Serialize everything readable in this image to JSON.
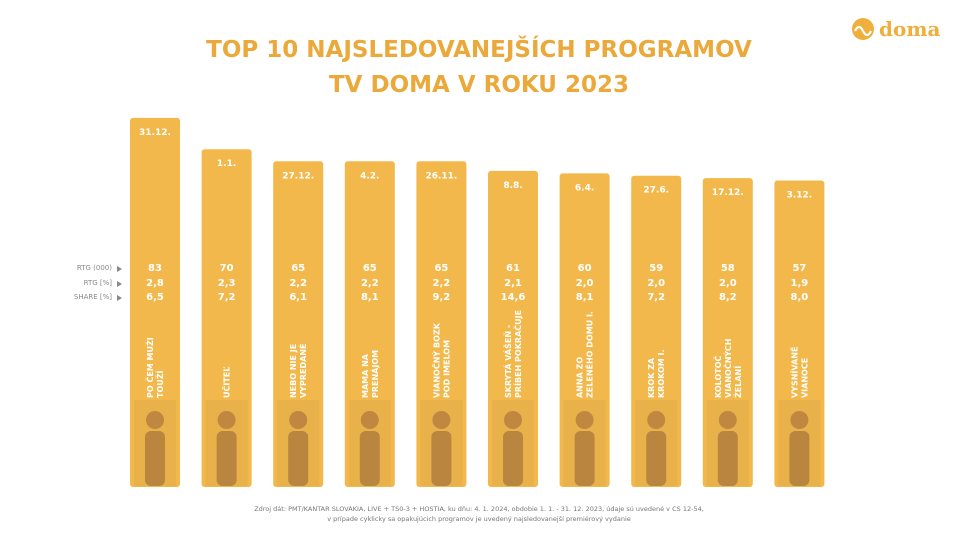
{
  "logo": "doma",
  "chart_data": {
    "type": "bar",
    "title": [
      "TOP 10 NAJSLEDOVANEJŠÍCH PROGRAMOV",
      "TV DOMA V ROKU 2023"
    ],
    "dates": [
      "31.12.",
      "1.1.",
      "27.12.",
      "4.2.",
      "26.11.",
      "8.8.",
      "6.4.",
      "27.6.",
      "17.12.",
      "3.12."
    ],
    "categories": [
      [
        "PO ČEM MUŽI",
        "TOUŽÍ"
      ],
      [
        "UČITEĽ"
      ],
      [
        "NEBO NIE JE",
        "VYPREDANÉ"
      ],
      [
        "MAMA NA",
        "PRENÁJOM"
      ],
      [
        "VIANOČNÝ BOZK",
        "POD IMELOM"
      ],
      [
        "SKRYTÁ VÁŠEŇ -",
        "PRÍBEH POKRAČUJE"
      ],
      [
        "ANNA ZO",
        "ZELENÉHO DOMU I."
      ],
      [
        "KROK ZA",
        "KROKOM I."
      ],
      [
        "KOLOTOČ",
        "VIANOČNÝCH",
        "ŽELANÍ"
      ],
      [
        "VYSNÍVANÉ",
        "VIANOCE"
      ]
    ],
    "series": [
      {
        "name": "RTG (000)",
        "color": "#f2b84b",
        "values": [
          83,
          70,
          65,
          65,
          65,
          61,
          60,
          59,
          58,
          57
        ]
      },
      {
        "name": "RTG [%]",
        "values": [
          2.8,
          2.3,
          2.2,
          2.2,
          2.2,
          2.1,
          2.0,
          2.0,
          2.0,
          1.9
        ],
        "value_labels": [
          "2,8",
          "2,3",
          "2,2",
          "2,2",
          "2,2",
          "2,1",
          "2,0",
          "2,0",
          "2,0",
          "1,9"
        ]
      },
      {
        "name": "SHARE [%]",
        "values": [
          6.5,
          7.2,
          6.1,
          8.1,
          9.2,
          14.6,
          8.1,
          7.2,
          8.2,
          8.0
        ],
        "value_labels": [
          "6,5",
          "7,2",
          "6,1",
          "8,1",
          "9,2",
          "14,6",
          "8,1",
          "7,2",
          "8,2",
          "8,0"
        ]
      }
    ],
    "ylim": [
      -70,
      85
    ],
    "source": [
      "Zdroj dát: PMT/KANTAR SLOVAKIA, LIVE + TS0-3 + HOSTIA, ku dňu: 4. 1. 2024, obdobie 1. 1. - 31. 12. 2023, údaje sú uvedené v CS 12-54,",
      "v prípade cyklicky sa opakujúcich programov je uvedený najsledovanejší premiérový vydanie"
    ]
  }
}
